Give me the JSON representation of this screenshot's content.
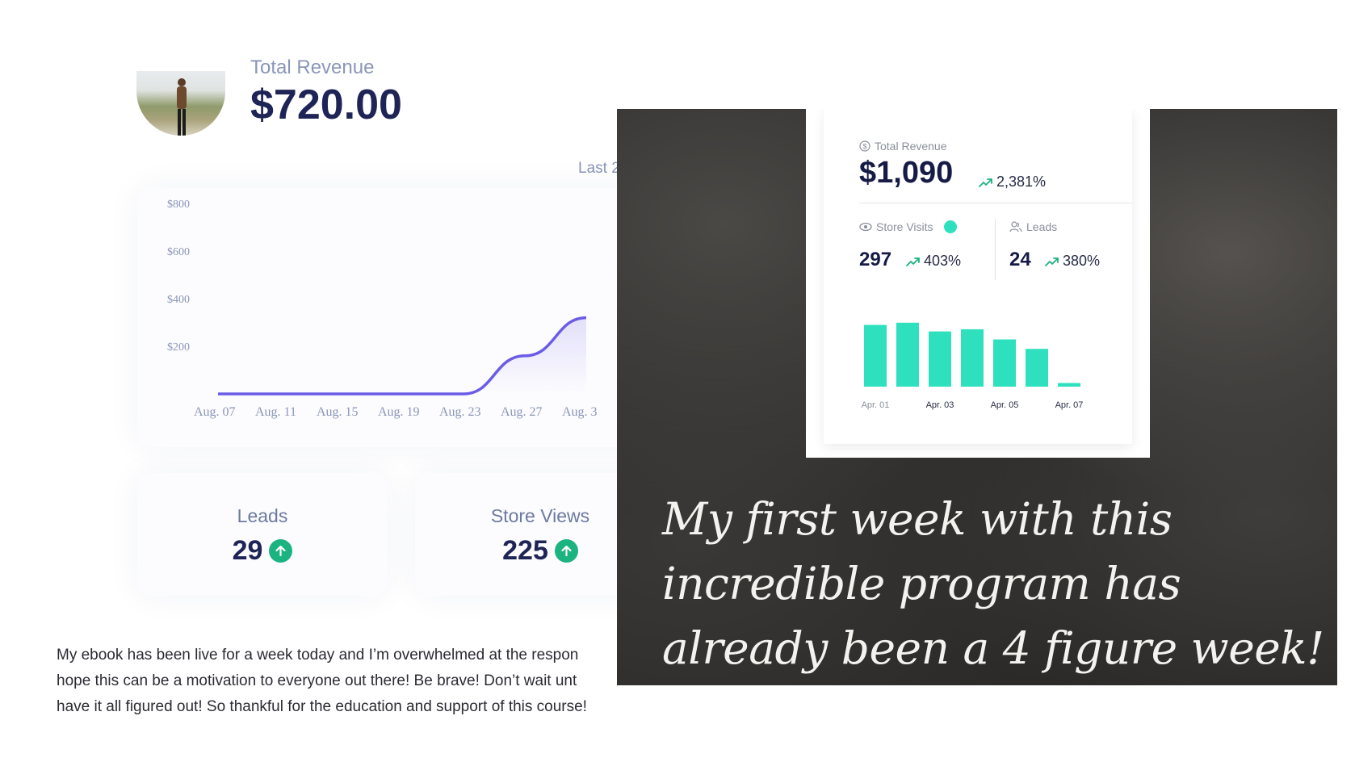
{
  "dashboard": {
    "revenue_label": "Total Revenue",
    "revenue_value": "$720.00",
    "range_label": "Last 2",
    "chart": {
      "type": "line",
      "y_ticks": [
        "$800",
        "$600",
        "$400",
        "$200"
      ],
      "x_ticks": [
        "Aug. 07",
        "Aug. 11",
        "Aug. 15",
        "Aug. 19",
        "Aug. 23",
        "Aug. 27",
        "Aug. 3"
      ],
      "line_color": "#6b5ce7"
    },
    "leads_label": "Leads",
    "leads_value": "29",
    "store_views_label": "Store Views",
    "store_views_value": "225",
    "accent_green": "#1bb37f"
  },
  "testimonial": {
    "line1": "My ebook has been live for a week today and I’m overwhelmed at the respon",
    "line2": "hope this can be a motivation to everyone out there! Be brave! Don’t wait unt",
    "line3": "have it all figured out! So thankful for the education and support of this course!"
  },
  "overlay": {
    "panel": {
      "revenue_label": "Total Revenue",
      "revenue_value": "$1,090",
      "revenue_pct": "2,381%",
      "store_visits_label": "Store Visits",
      "store_visits_value": "297",
      "store_visits_pct": "403%",
      "leads_label": "Leads",
      "leads_value": "24",
      "leads_pct": "380%",
      "bar_color": "#2ee0bd"
    },
    "quote_line1": "My first week with this",
    "quote_line2": "incredible program has",
    "quote_line3": "already been a 4 figure week!"
  },
  "chart_data": [
    {
      "type": "line",
      "title": "",
      "categories": [
        "Aug. 07",
        "Aug. 11",
        "Aug. 15",
        "Aug. 19",
        "Aug. 23",
        "Aug. 27",
        "Aug. 3"
      ],
      "series": [
        {
          "values": [
            0,
            0,
            0,
            0,
            0,
            160,
            320
          ]
        }
      ],
      "ylim": [
        0,
        800
      ],
      "y_ticks": [
        200,
        400,
        600,
        800
      ],
      "grid": false
    },
    {
      "type": "bar",
      "title": "",
      "categories": [
        "Apr. 01",
        "Apr. 02",
        "Apr. 03",
        "Apr. 04",
        "Apr. 05",
        "Apr. 06",
        "Apr. 07"
      ],
      "tick_labels": [
        "Apr. 01",
        "Apr. 03",
        "Apr. 05",
        "Apr. 07"
      ],
      "values": [
        85,
        88,
        76,
        79,
        65,
        52,
        5
      ],
      "grid": false
    }
  ]
}
